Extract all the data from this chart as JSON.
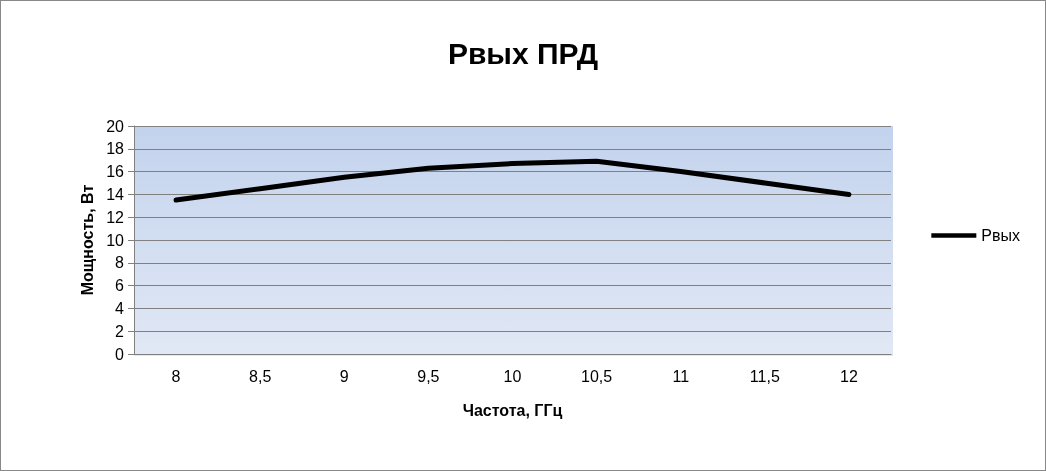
{
  "chart_data": {
    "type": "line",
    "title": "Рвых ПРД",
    "xlabel": "Частота, ГГц",
    "ylabel": "Мощность, Вт",
    "categories": [
      "8",
      "8,5",
      "9",
      "9,5",
      "10",
      "10,5",
      "11",
      "11,5",
      "12"
    ],
    "series": [
      {
        "name": "Рвых",
        "color": "#000000",
        "values": [
          13.5,
          14.5,
          15.5,
          16.3,
          16.7,
          16.9,
          16,
          15,
          14
        ]
      }
    ],
    "ylim": [
      0,
      20
    ],
    "yticks": [
      0,
      2,
      4,
      6,
      8,
      10,
      12,
      14,
      16,
      18,
      20
    ],
    "grid": "y",
    "legend": "right",
    "marker": "none",
    "line_style": "solid"
  }
}
